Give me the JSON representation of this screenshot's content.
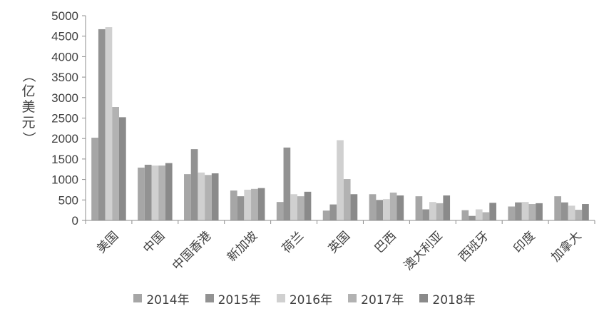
{
  "chart_data": {
    "type": "bar",
    "y_axis_label": "（亿美元）",
    "ylim": [
      0,
      5000
    ],
    "y_ticks": [
      "0",
      "500",
      "1000",
      "1500",
      "2000",
      "2500",
      "3000",
      "3500",
      "4000",
      "4500",
      "5000"
    ],
    "categories": [
      "美国",
      "中国",
      "中国香港",
      "新加坡",
      "荷兰",
      "英国",
      "巴西",
      "澳大利亚",
      "西班牙",
      "印度",
      "加拿大"
    ],
    "series": [
      {
        "name": "2014年",
        "color": "#a6a6a6",
        "values": [
          2020,
          1290,
          1130,
          730,
          450,
          240,
          640,
          590,
          250,
          340,
          590
        ]
      },
      {
        "name": "2015年",
        "color": "#929292",
        "values": [
          4670,
          1360,
          1740,
          590,
          1780,
          390,
          500,
          270,
          110,
          440,
          440
        ]
      },
      {
        "name": "2016年",
        "color": "#d0d0d0",
        "values": [
          4720,
          1340,
          1170,
          750,
          640,
          1960,
          520,
          450,
          270,
          450,
          360
        ]
      },
      {
        "name": "2017年",
        "color": "#b2b2b2",
        "values": [
          2770,
          1340,
          1110,
          770,
          590,
          1010,
          680,
          420,
          200,
          400,
          260
        ]
      },
      {
        "name": "2018年",
        "color": "#8a8a8a",
        "values": [
          2520,
          1400,
          1150,
          790,
          700,
          640,
          610,
          610,
          430,
          420,
          400
        ]
      }
    ],
    "grid": false,
    "legend_position": "bottom"
  }
}
